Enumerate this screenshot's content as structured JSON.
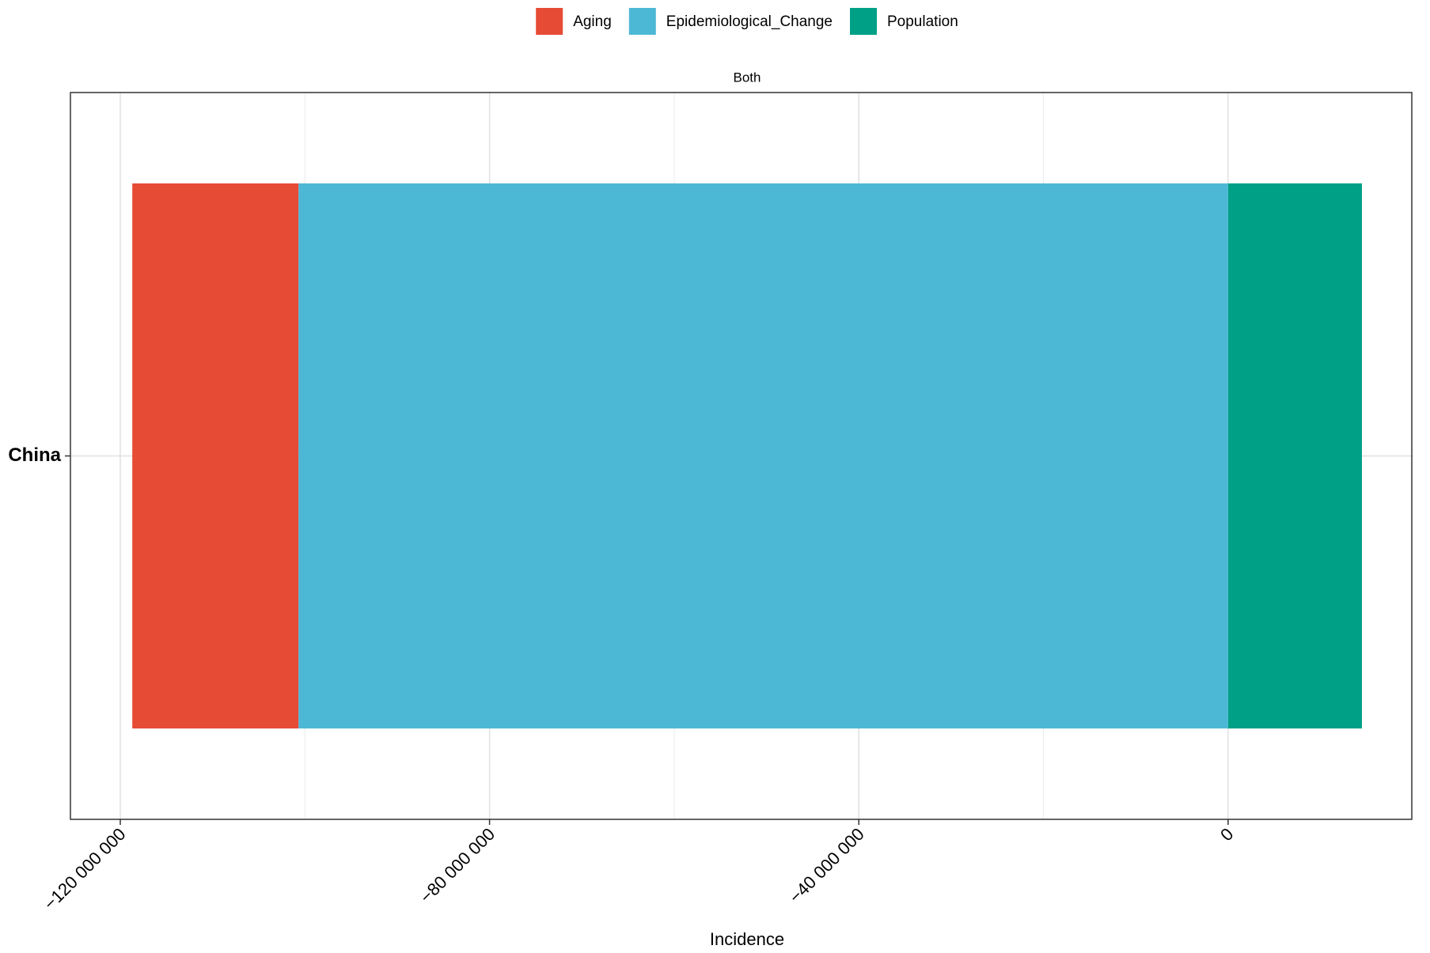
{
  "chart_data": {
    "type": "stacked_bar_horizontal",
    "facet": "Both",
    "x_label": "Incidence",
    "categories": [
      "China"
    ],
    "series": [
      {
        "name": "Aging",
        "color": "#e64b35",
        "values": [
          -18000000
        ]
      },
      {
        "name": "Epidemiological_Change",
        "color": "#4db8d5",
        "values": [
          -100700000
        ]
      },
      {
        "name": "Population",
        "color": "#00a087",
        "values": [
          14500000
        ]
      }
    ],
    "xlim": [
      -125400000,
      19900000
    ],
    "xticks": [
      {
        "value": -120000000,
        "label": "−120 000 000"
      },
      {
        "value": -80000000,
        "label": "−80 000 000"
      },
      {
        "value": -40000000,
        "label": "−40 000 000"
      },
      0
    ],
    "xminor": [
      -100000000,
      -60000000,
      -20000000
    ],
    "grid": true,
    "legend": "top"
  }
}
